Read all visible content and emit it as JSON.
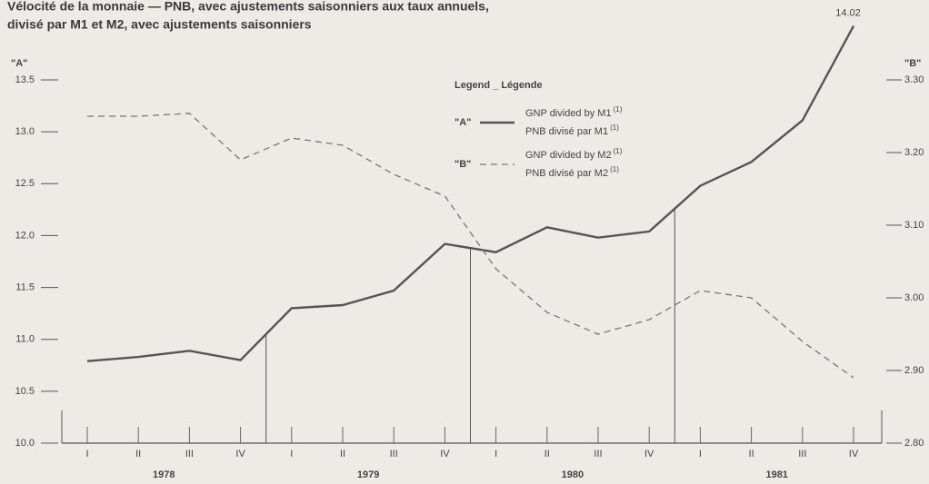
{
  "chart_data": {
    "type": "line",
    "title": "Vélocité de la monnaie — PNB, avec ajustements saisonniers aux taux annuels,",
    "subtitle": "divisé par M1 et M2, avec ajustements saisonniers",
    "y_label": "\"A\"",
    "y2_label": "\"B\"",
    "legend_title": "Legend _ Légende",
    "footnote": "(1)",
    "categories": [
      "I",
      "II",
      "III",
      "IV",
      "I",
      "II",
      "III",
      "IV",
      "I",
      "II",
      "III",
      "IV",
      "I",
      "II",
      "III",
      "IV"
    ],
    "years": [
      "1978",
      "1979",
      "1980",
      "1981"
    ],
    "series": [
      {
        "name": "GNP divided by M1",
        "name_fr": "PNB divisé par M1",
        "key": "\"A\"",
        "color": "#555555",
        "dash": false,
        "values": [
          10.79,
          10.83,
          10.89,
          10.8,
          11.3,
          11.33,
          11.47,
          11.92,
          11.84,
          12.08,
          11.98,
          12.04,
          12.48,
          12.71,
          13.11,
          14.02
        ]
      },
      {
        "name": "GNP divided by M2",
        "name_fr": "PNB divisé par M2",
        "key": "\"B\"",
        "color": "#777777",
        "dash": true,
        "axis": "y2",
        "values": [
          3.25,
          3.25,
          3.254,
          3.19,
          3.22,
          3.21,
          3.17,
          3.14,
          3.04,
          2.98,
          2.95,
          2.97,
          3.01,
          3.0,
          2.94,
          2.89
        ]
      }
    ],
    "ylim": [
      10,
      13.5
    ],
    "yticks": [
      {
        "value": 10,
        "label": "10.0"
      },
      10.5,
      {
        "value": 11,
        "label": "11.0"
      },
      11.5,
      {
        "value": 12,
        "label": "12.0"
      },
      12.5,
      {
        "value": 13,
        "label": "13.0"
      },
      13.5
    ],
    "y2lim": [
      2.8,
      3.3
    ],
    "y2ticks": [
      {
        "value": 2.8,
        "label": "2.80"
      },
      {
        "value": 2.9,
        "label": "2.90"
      },
      {
        "value": 3.0,
        "label": "3.00"
      },
      {
        "value": 3.1,
        "label": "3.10"
      },
      {
        "value": 3.2,
        "label": "3.20"
      },
      {
        "value": 3.3,
        "label": "3.30"
      }
    ]
  }
}
